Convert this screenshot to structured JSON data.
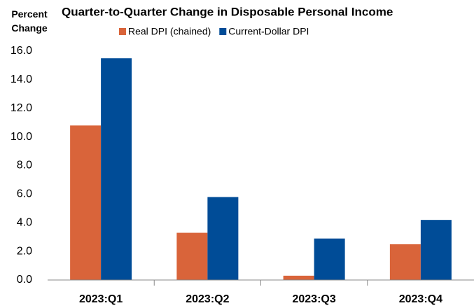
{
  "chart_data": {
    "type": "bar",
    "title": "Quarter-to-Quarter Change in Disposable Personal Income",
    "ylabel": "Percent Change",
    "categories": [
      "2023:Q1",
      "2023:Q2",
      "2023:Q3",
      "2023:Q4"
    ],
    "series": [
      {
        "name": "Real DPI (chained)",
        "color": "#d9643a",
        "values": [
          10.8,
          3.3,
          0.3,
          2.5
        ]
      },
      {
        "name": "Current-Dollar DPI",
        "color": "#004c97",
        "values": [
          15.5,
          5.8,
          2.9,
          4.2
        ]
      }
    ],
    "ylim": [
      0,
      16
    ],
    "yticks": [
      {
        "value": 0,
        "label": "0.0"
      },
      {
        "value": 2,
        "label": "2.0"
      },
      {
        "value": 4,
        "label": "4.0"
      },
      {
        "value": 6,
        "label": "6.0"
      },
      {
        "value": 8,
        "label": "8.0"
      },
      {
        "value": 10,
        "label": "10.0"
      },
      {
        "value": 12,
        "label": "12.0"
      },
      {
        "value": 14,
        "label": "14.0"
      },
      {
        "value": 16,
        "label": "16.0"
      }
    ],
    "grid": false,
    "legend": "top"
  }
}
